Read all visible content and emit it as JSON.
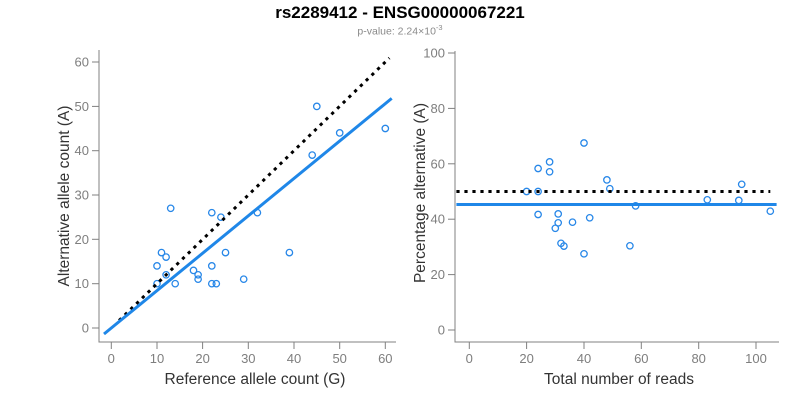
{
  "header": {
    "title": "rs2289412 - ENSG00000067221",
    "pvalue_prefix": "p-value: 2.24×10",
    "pvalue_exponent": "-3"
  },
  "colors": {
    "point_blue": "#2787E8",
    "line_blue": "#1F87E8",
    "dotted_black": "#000000",
    "axis_gray": "#808080",
    "tick_text_gray": "#7e7e7e",
    "label_dark": "#333333"
  },
  "chart_data": [
    {
      "type": "scatter",
      "panel": "allele-counts",
      "xlabel": "Reference allele count (G)",
      "ylabel": "Alternative allele count (A)",
      "xlim": [
        0,
        60
      ],
      "ylim": [
        0,
        60
      ],
      "xticks": [
        0,
        10,
        20,
        30,
        40,
        50,
        60
      ],
      "yticks": [
        0,
        10,
        20,
        30,
        40,
        50,
        60
      ],
      "grid": false,
      "points": [
        [
          10,
          10
        ],
        [
          10,
          14
        ],
        [
          11,
          17
        ],
        [
          12,
          12
        ],
        [
          12,
          16
        ],
        [
          13,
          27
        ],
        [
          14,
          10
        ],
        [
          18,
          13
        ],
        [
          19,
          11
        ],
        [
          19,
          12
        ],
        [
          22,
          10
        ],
        [
          22,
          14
        ],
        [
          22,
          26
        ],
        [
          23,
          10
        ],
        [
          24,
          25
        ],
        [
          25,
          17
        ],
        [
          29,
          11
        ],
        [
          32,
          26
        ],
        [
          39,
          17
        ],
        [
          44,
          39
        ],
        [
          45,
          50
        ],
        [
          50,
          44
        ],
        [
          60,
          45
        ]
      ],
      "lines": [
        {
          "name": "identity-line",
          "style": "dotted",
          "color": "#000000",
          "from": [
            1.7,
            1.7
          ],
          "to": [
            60.9,
            60.9
          ]
        },
        {
          "name": "regression-line",
          "style": "solid",
          "color": "#1F87E8",
          "from": [
            -1.6,
            -1.35
          ],
          "to": [
            61.4,
            51.8
          ]
        }
      ]
    },
    {
      "type": "scatter",
      "panel": "percentage-vs-depth",
      "xlabel": "Total number of reads",
      "ylabel": "Percentage alternative (A)",
      "xlim": [
        0,
        108
      ],
      "ylim": [
        0,
        100
      ],
      "xticks": [
        0,
        20,
        40,
        60,
        80,
        100
      ],
      "yticks": [
        0,
        20,
        40,
        60,
        80,
        100
      ],
      "grid": false,
      "points": [
        [
          20,
          50
        ],
        [
          24,
          58.3
        ],
        [
          24,
          50
        ],
        [
          24,
          41.7
        ],
        [
          28,
          60.7
        ],
        [
          28,
          57.1
        ],
        [
          30,
          36.7
        ],
        [
          31,
          41.9
        ],
        [
          31,
          38.7
        ],
        [
          32,
          31.3
        ],
        [
          33,
          30.3
        ],
        [
          36,
          38.9
        ],
        [
          40,
          67.5
        ],
        [
          40,
          27.5
        ],
        [
          42,
          40.5
        ],
        [
          48,
          54.2
        ],
        [
          49,
          51
        ],
        [
          56,
          30.4
        ],
        [
          58,
          44.8
        ],
        [
          83,
          47
        ],
        [
          94,
          46.8
        ],
        [
          95,
          52.6
        ],
        [
          105,
          42.9
        ]
      ],
      "lines": [
        {
          "name": "expected-50pct-line",
          "style": "dotted",
          "color": "#000000",
          "from": [
            -4.5,
            50
          ],
          "to": [
            105,
            50
          ]
        },
        {
          "name": "mean-percentage-line",
          "style": "solid",
          "color": "#1F87E8",
          "from": [
            -4.5,
            45.3
          ],
          "to": [
            107.2,
            45.3
          ]
        }
      ]
    }
  ]
}
